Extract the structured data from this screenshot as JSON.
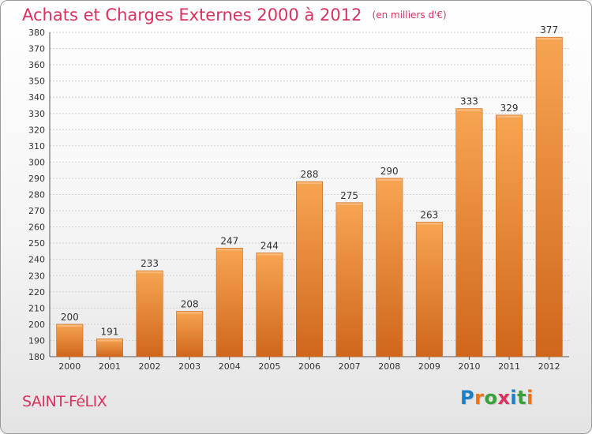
{
  "header": {
    "title": "Achats et Charges Externes 2000 à 2012",
    "subtitle": "(en milliers d'€)"
  },
  "footer": {
    "place": "SAINT-FéLIX",
    "logo_text": "Proxiti",
    "logo_colors": [
      "#1f7fc4",
      "#e8741b",
      "#3aa13a",
      "#d8325e",
      "#1f7fc4",
      "#3aa13a",
      "#e8741b"
    ]
  },
  "chart_data": {
    "type": "bar",
    "title": "Achats et Charges Externes 2000 à 2012",
    "subtitle": "(en milliers d'€)",
    "xlabel": "",
    "ylabel": "",
    "categories": [
      "2000",
      "2001",
      "2002",
      "2003",
      "2004",
      "2005",
      "2006",
      "2007",
      "2008",
      "2009",
      "2010",
      "2011",
      "2012"
    ],
    "values": [
      200,
      191,
      233,
      208,
      247,
      244,
      288,
      275,
      290,
      263,
      333,
      329,
      377
    ],
    "ylim": [
      180,
      380
    ],
    "ytick_step": 10,
    "grid": true,
    "bar_color": "#f0923a",
    "bar_color_dark": "#cf661c"
  }
}
